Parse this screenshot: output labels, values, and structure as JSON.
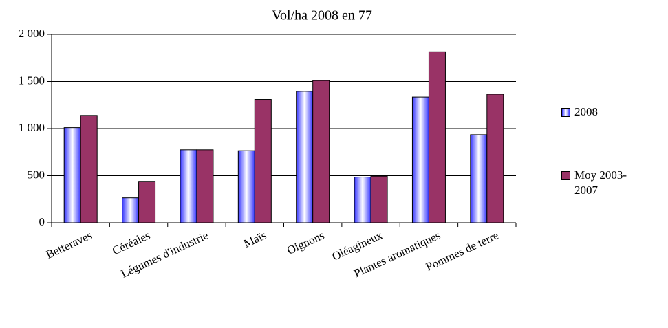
{
  "chart_data": {
    "type": "bar",
    "title": "Vol/ha 2008 en 77",
    "categories": [
      "Betteraves",
      "Céréales",
      "Légumes d'industrie",
      "Maïs",
      "Oignons",
      "Oléagineux",
      "Plantes aromatiques",
      "Pommes de terre"
    ],
    "series": [
      {
        "name": "2008",
        "color": "#3333ff",
        "values": [
          1010,
          265,
          775,
          765,
          1395,
          485,
          1335,
          935
        ]
      },
      {
        "name": "Moy 2003-2007",
        "color": "#993366",
        "values": [
          1140,
          440,
          775,
          1310,
          1510,
          495,
          1815,
          1365
        ]
      }
    ],
    "ylim": [
      0,
      2000
    ],
    "yticks": [
      0,
      500,
      {
        "value": 1000,
        "label": "1 000"
      },
      {
        "value": 1500,
        "label": "1 500"
      },
      {
        "value": 2000,
        "label": "2 000"
      }
    ],
    "grid": true
  }
}
